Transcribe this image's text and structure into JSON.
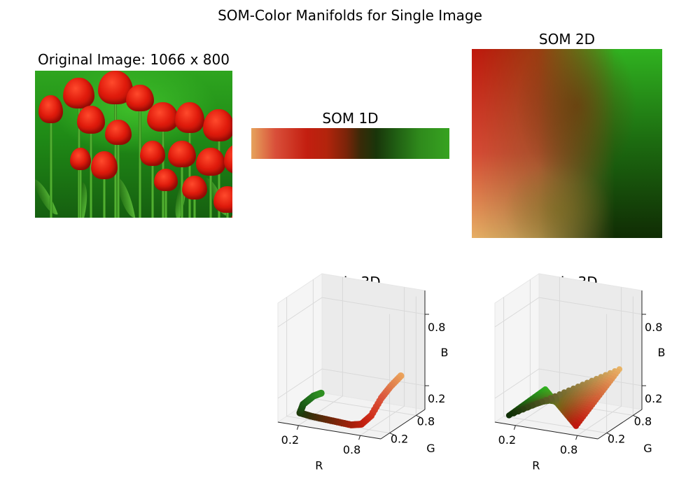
{
  "figure": {
    "title": "SOM-Color Manifolds for Single Image"
  },
  "panels": {
    "original": {
      "title": "Original Image: 1066 x 800"
    },
    "som1d": {
      "title": "SOM 1D"
    },
    "som2d": {
      "title": "SOM 2D"
    },
    "d1in3d": {
      "title": "1D in 3D"
    },
    "d2in3d": {
      "title": "2D in 3D"
    }
  },
  "axes3d": {
    "r_ticks": [
      "0.2",
      "0.8"
    ],
    "g_ticks": [
      "0.2",
      "0.8"
    ],
    "b_ticks": [
      "0.2",
      "0.8"
    ],
    "xlabel": "R",
    "ylabel": "G",
    "zlabel": "B"
  },
  "chart_data": [
    {
      "type": "scatter",
      "title": "1D in 3D",
      "xlabel": "R",
      "ylabel": "G",
      "zlabel": "B",
      "xlim": [
        0,
        1
      ],
      "ylim": [
        0,
        1
      ],
      "zlim": [
        0,
        1
      ],
      "points": [
        {
          "r": 0.92,
          "g": 0.64,
          "b": 0.36
        },
        {
          "r": 0.88,
          "g": 0.5,
          "b": 0.3
        },
        {
          "r": 0.86,
          "g": 0.34,
          "b": 0.24
        },
        {
          "r": 0.82,
          "g": 0.2,
          "b": 0.12
        },
        {
          "r": 0.76,
          "g": 0.12,
          "b": 0.06
        },
        {
          "r": 0.66,
          "g": 0.12,
          "b": 0.04
        },
        {
          "r": 0.52,
          "g": 0.14,
          "b": 0.04
        },
        {
          "r": 0.38,
          "g": 0.16,
          "b": 0.04
        },
        {
          "r": 0.24,
          "g": 0.18,
          "b": 0.04
        },
        {
          "r": 0.12,
          "g": 0.22,
          "b": 0.04
        },
        {
          "r": 0.1,
          "g": 0.34,
          "b": 0.08
        },
        {
          "r": 0.14,
          "g": 0.48,
          "b": 0.12
        },
        {
          "r": 0.18,
          "g": 0.56,
          "b": 0.13
        }
      ]
    },
    {
      "type": "scatter",
      "title": "2D in 3D",
      "xlabel": "R",
      "ylabel": "G",
      "zlabel": "B",
      "xlim": [
        0,
        1
      ],
      "ylim": [
        0,
        1
      ],
      "zlim": [
        0,
        1
      ],
      "corners": [
        {
          "r": 0.75,
          "g": 0.09,
          "b": 0.05
        },
        {
          "r": 0.19,
          "g": 0.7,
          "b": 0.13
        },
        {
          "r": 0.91,
          "g": 0.7,
          "b": 0.4
        },
        {
          "r": 0.06,
          "g": 0.18,
          "b": 0.02
        }
      ]
    }
  ],
  "colors": {
    "som1d_start": "#e6a35c",
    "som1d_red": "#c31e10",
    "som1d_dark": "#19350a",
    "som1d_end": "#37a321",
    "som2d_top_left": "#c0170d",
    "som2d_top_right": "#30b220",
    "som2d_bottom_left": "#e8b066",
    "som2d_bottom_right": "#102c04",
    "pane": "#f2f2f2",
    "grid": "#dcdcdc"
  }
}
